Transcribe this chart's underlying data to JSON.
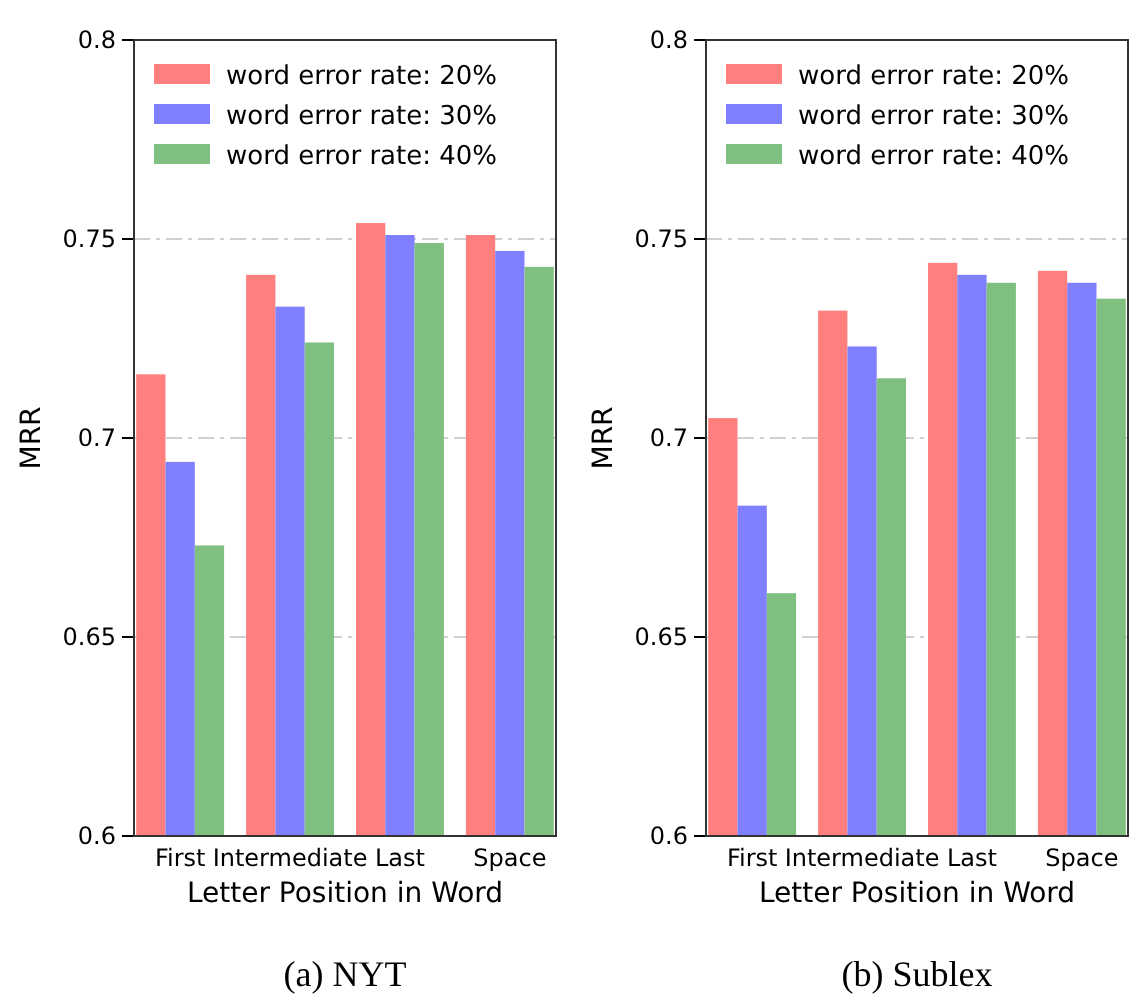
{
  "chart_data": [
    {
      "type": "bar",
      "xlabel": "Letter Position in Word",
      "ylabel": "MRR",
      "categories": [
        "First",
        "Intermediate",
        "Last",
        "Space"
      ],
      "ylim": [
        0.6,
        0.8
      ],
      "yticks": [
        0.6,
        0.65,
        0.7,
        0.75,
        0.8
      ],
      "grid": "y",
      "legend": "top right",
      "annotations": [
        "(a) NYT"
      ],
      "series": [
        {
          "name": "word error rate: 20%",
          "color": "#ff7f7f",
          "values": [
            0.716,
            0.741,
            0.754,
            0.751
          ]
        },
        {
          "name": "word error rate: 30%",
          "color": "#7f7fff",
          "values": [
            0.694,
            0.733,
            0.751,
            0.747
          ]
        },
        {
          "name": "word error rate: 40%",
          "color": "#7fbf7f",
          "values": [
            0.673,
            0.724,
            0.749,
            0.743
          ]
        }
      ]
    },
    {
      "type": "bar",
      "xlabel": "Letter Position in Word",
      "ylabel": "MRR",
      "categories": [
        "First",
        "Intermediate",
        "Last",
        "Space"
      ],
      "ylim": [
        0.6,
        0.8
      ],
      "yticks": [
        0.6,
        0.65,
        0.7,
        0.75,
        0.8
      ],
      "grid": "y",
      "legend": "top right",
      "annotations": [
        "(b) Sublex"
      ],
      "series": [
        {
          "name": "word error rate: 20%",
          "color": "#ff7f7f",
          "values": [
            0.705,
            0.732,
            0.744,
            0.742
          ]
        },
        {
          "name": "word error rate: 30%",
          "color": "#7f7fff",
          "values": [
            0.683,
            0.723,
            0.741,
            0.739
          ]
        },
        {
          "name": "word error rate: 40%",
          "color": "#7fbf7f",
          "values": [
            0.661,
            0.715,
            0.739,
            0.735
          ]
        }
      ]
    }
  ]
}
